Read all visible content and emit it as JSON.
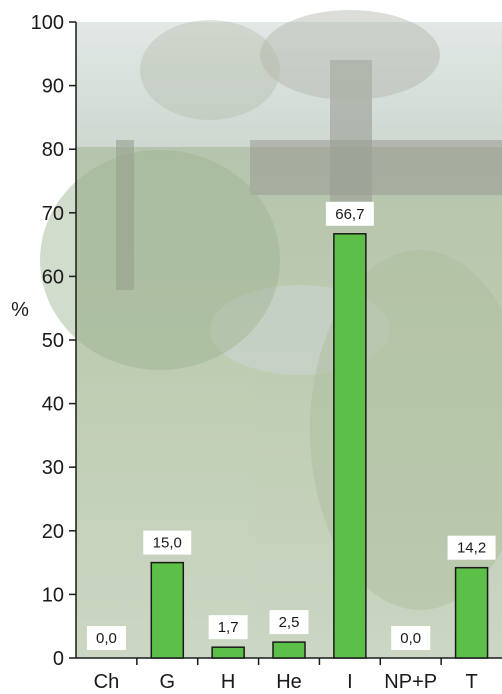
{
  "chart_data": {
    "type": "bar",
    "categories": [
      "Ch",
      "G",
      "H",
      "He",
      "I",
      "NP+P",
      "T"
    ],
    "values": [
      0.0,
      15.0,
      1.7,
      2.5,
      66.7,
      0.0,
      14.2
    ],
    "value_labels": [
      "0,0",
      "15,0",
      "1,7",
      "2,5",
      "66,7",
      "0,0",
      "14,2"
    ],
    "ylabel": "%",
    "ylim": [
      0,
      100
    ],
    "yticks": [
      0,
      10,
      20,
      30,
      40,
      50,
      60,
      70,
      80,
      90,
      100
    ],
    "grid": false,
    "bar_color": "#5cbf47",
    "bar_edge_color": "#1a1a1a",
    "label_box_color": "#ffffff",
    "background": "photograph of pollarded willows lining a stream in a field"
  }
}
